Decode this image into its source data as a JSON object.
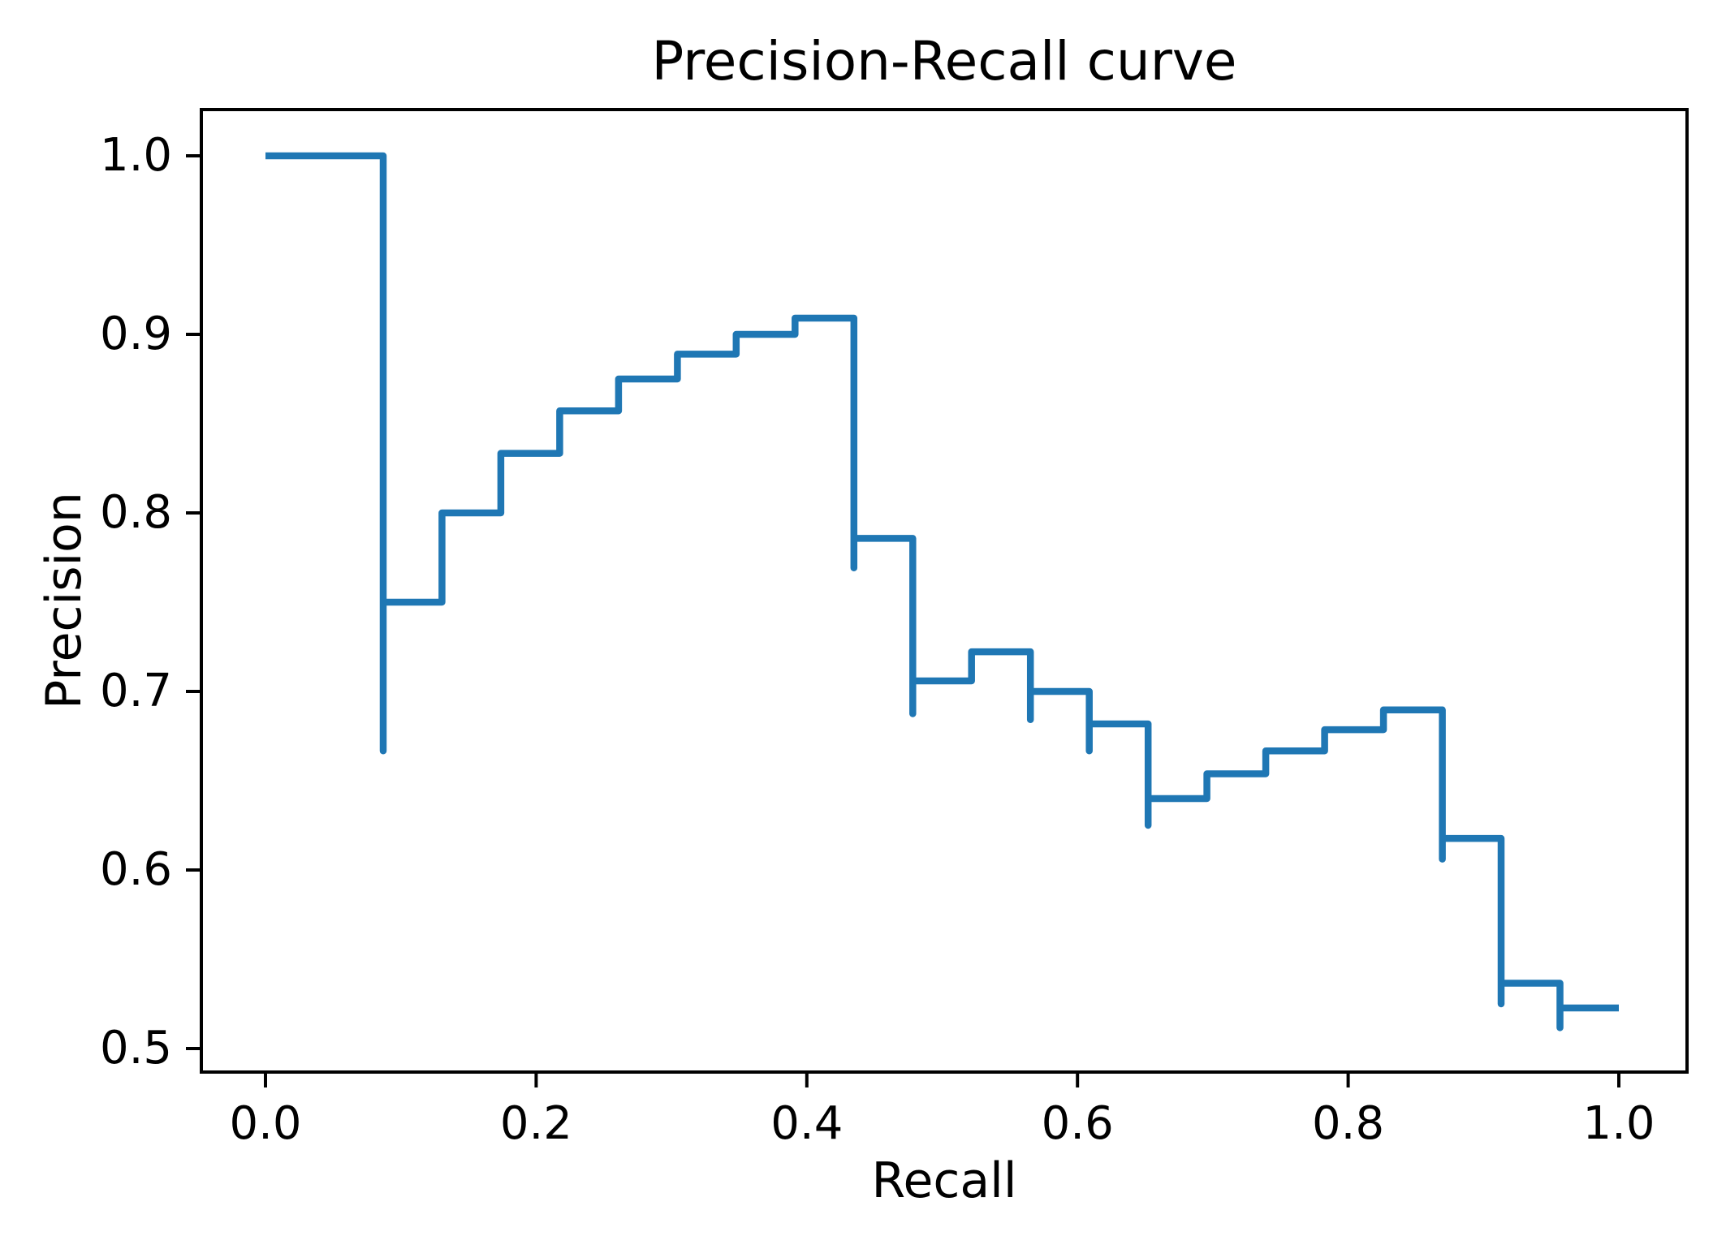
{
  "chart_data": {
    "type": "line",
    "subtype": "step-curve",
    "title": "Precision-Recall curve",
    "xlabel": "Recall",
    "ylabel": "Precision",
    "grid": false,
    "legend_position": "none",
    "line_color": "#1f77b4",
    "line_width": 8.5,
    "axis_color": "#000000",
    "x_tick_values": [
      0.0,
      0.2,
      0.4,
      0.6,
      0.8,
      1.0
    ],
    "x_tick_labels": [
      "0.0",
      "0.2",
      "0.4",
      "0.6",
      "0.8",
      "1.0"
    ],
    "y_tick_values": [
      0.5,
      0.6,
      0.7,
      0.8,
      0.9,
      1.0
    ],
    "y_tick_labels": [
      "0.5",
      "0.6",
      "0.7",
      "0.8",
      "0.9",
      "1.0"
    ],
    "xlim": [
      -0.0474,
      1.0504
    ],
    "ylim": [
      0.4868,
      1.0259
    ],
    "points": [
      [
        0.0,
        1.0
      ],
      [
        0.08696,
        1.0
      ],
      [
        0.08696,
        0.66667
      ],
      [
        0.08696,
        0.75
      ],
      [
        0.13043,
        0.75
      ],
      [
        0.13043,
        0.8
      ],
      [
        0.17391,
        0.8
      ],
      [
        0.17391,
        0.83333
      ],
      [
        0.21739,
        0.83333
      ],
      [
        0.21739,
        0.85714
      ],
      [
        0.26087,
        0.85714
      ],
      [
        0.26087,
        0.875
      ],
      [
        0.30435,
        0.875
      ],
      [
        0.30435,
        0.88889
      ],
      [
        0.34783,
        0.88889
      ],
      [
        0.34783,
        0.9
      ],
      [
        0.3913,
        0.9
      ],
      [
        0.3913,
        0.90909
      ],
      [
        0.43478,
        0.90909
      ],
      [
        0.43478,
        0.76923
      ],
      [
        0.43478,
        0.78571
      ],
      [
        0.47826,
        0.78571
      ],
      [
        0.47826,
        0.6875
      ],
      [
        0.47826,
        0.70588
      ],
      [
        0.52174,
        0.70588
      ],
      [
        0.52174,
        0.72222
      ],
      [
        0.56522,
        0.72222
      ],
      [
        0.56522,
        0.68421
      ],
      [
        0.56522,
        0.7
      ],
      [
        0.6087,
        0.7
      ],
      [
        0.6087,
        0.66667
      ],
      [
        0.6087,
        0.68182
      ],
      [
        0.65217,
        0.68182
      ],
      [
        0.65217,
        0.625
      ],
      [
        0.65217,
        0.64
      ],
      [
        0.69565,
        0.64
      ],
      [
        0.69565,
        0.65385
      ],
      [
        0.73913,
        0.65385
      ],
      [
        0.73913,
        0.66667
      ],
      [
        0.78261,
        0.66667
      ],
      [
        0.78261,
        0.67857
      ],
      [
        0.82609,
        0.67857
      ],
      [
        0.82609,
        0.68966
      ],
      [
        0.86957,
        0.68966
      ],
      [
        0.86957,
        0.60606
      ],
      [
        0.86957,
        0.61765
      ],
      [
        0.91304,
        0.61765
      ],
      [
        0.91304,
        0.525
      ],
      [
        0.91304,
        0.53659
      ],
      [
        0.95652,
        0.53659
      ],
      [
        0.95652,
        0.51163
      ],
      [
        0.95652,
        0.52273
      ],
      [
        1.0,
        0.52273
      ]
    ]
  }
}
